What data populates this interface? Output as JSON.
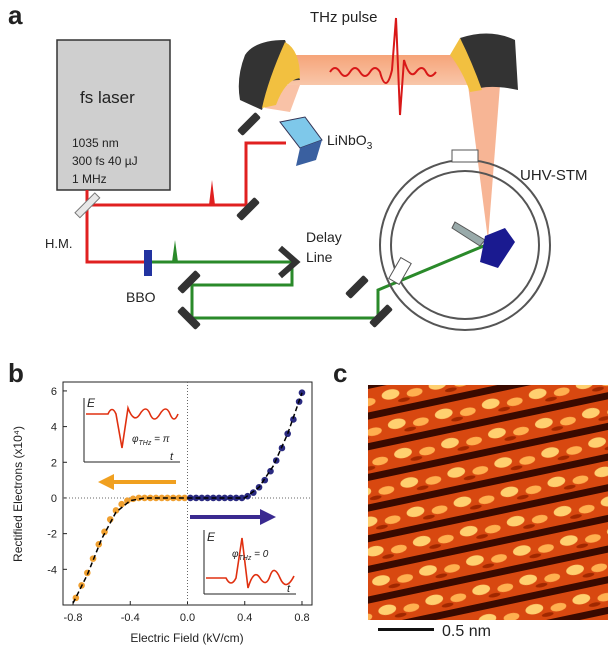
{
  "panel_a": {
    "label": "a",
    "laser": {
      "title": "fs laser",
      "lines": [
        "1035 nm",
        "300 fs 40 µJ",
        "1 MHz"
      ]
    },
    "thz_pulse": "THz pulse",
    "crystal": {
      "text": "LiNbO",
      "subscript": "3"
    },
    "stm": "UHV-STM",
    "half_mirror": "H.M.",
    "bbo": "BBO",
    "delay_line": [
      "Delay",
      "Line"
    ]
  },
  "panel_c": {
    "label": "c",
    "scale_bar": "0.5 nm"
  },
  "chart_data": {
    "type": "scatter",
    "label": "b",
    "x_label": "Electric Field (kV/cm)",
    "y_label": "Rectified Electrons (x10⁴)",
    "xlim": [
      -0.87,
      0.87
    ],
    "ylim": [
      -6,
      6.5
    ],
    "xticks": [
      -0.8,
      -0.4,
      {
        "value": 0,
        "label": "0.0"
      },
      0.4,
      0.8
    ],
    "yticks": [
      -4,
      -2,
      0,
      2,
      4,
      6
    ],
    "series": [
      {
        "color": "#f0a030",
        "style": "dots",
        "x": [
          -0.78,
          -0.74,
          -0.7,
          -0.66,
          -0.62,
          -0.58,
          -0.54,
          -0.5,
          -0.46,
          -0.42,
          -0.38,
          -0.34,
          -0.3,
          -0.26,
          -0.22,
          -0.18,
          -0.14,
          -0.1,
          -0.06,
          -0.02
        ],
        "values": [
          -5.6,
          -4.9,
          -4.2,
          -3.4,
          -2.6,
          -1.9,
          -1.2,
          -0.7,
          -0.35,
          -0.15,
          -0.05,
          0,
          0,
          0,
          0,
          0,
          0,
          0,
          0,
          0
        ]
      },
      {
        "color": "#2a2a80",
        "style": "dots",
        "x": [
          0.02,
          0.06,
          0.1,
          0.14,
          0.18,
          0.22,
          0.26,
          0.3,
          0.34,
          0.38,
          0.42,
          0.46,
          0.5,
          0.54,
          0.58,
          0.62,
          0.66,
          0.7,
          0.74,
          0.78,
          0.8
        ],
        "values": [
          0,
          0,
          0,
          0,
          0,
          0,
          0,
          0,
          0,
          0,
          0.1,
          0.3,
          0.6,
          1.0,
          1.5,
          2.1,
          2.8,
          3.6,
          4.4,
          5.4,
          5.9
        ]
      },
      {
        "color": "#000000",
        "style": "dashed",
        "x": [
          -0.8,
          -0.7,
          -0.6,
          -0.5,
          -0.4,
          -0.3,
          0
        ],
        "values": [
          -5.9,
          -4.3,
          -2.3,
          -0.8,
          -0.15,
          0,
          0
        ]
      },
      {
        "color": "#000000",
        "style": "dashed",
        "x": [
          0,
          0.4,
          0.5,
          0.6,
          0.7,
          0.8
        ],
        "values": [
          0,
          0,
          0.6,
          1.8,
          3.6,
          5.9
        ]
      }
    ],
    "insets": [
      {
        "axis_y": "E",
        "axis_x": "t",
        "phase": {
          "symbol": "φ",
          "subscript": "THz",
          "text": " = π"
        }
      },
      {
        "axis_y": "E",
        "axis_x": "t",
        "phase": {
          "symbol": "φ",
          "subscript": "THz",
          "text": " = 0"
        }
      }
    ]
  }
}
